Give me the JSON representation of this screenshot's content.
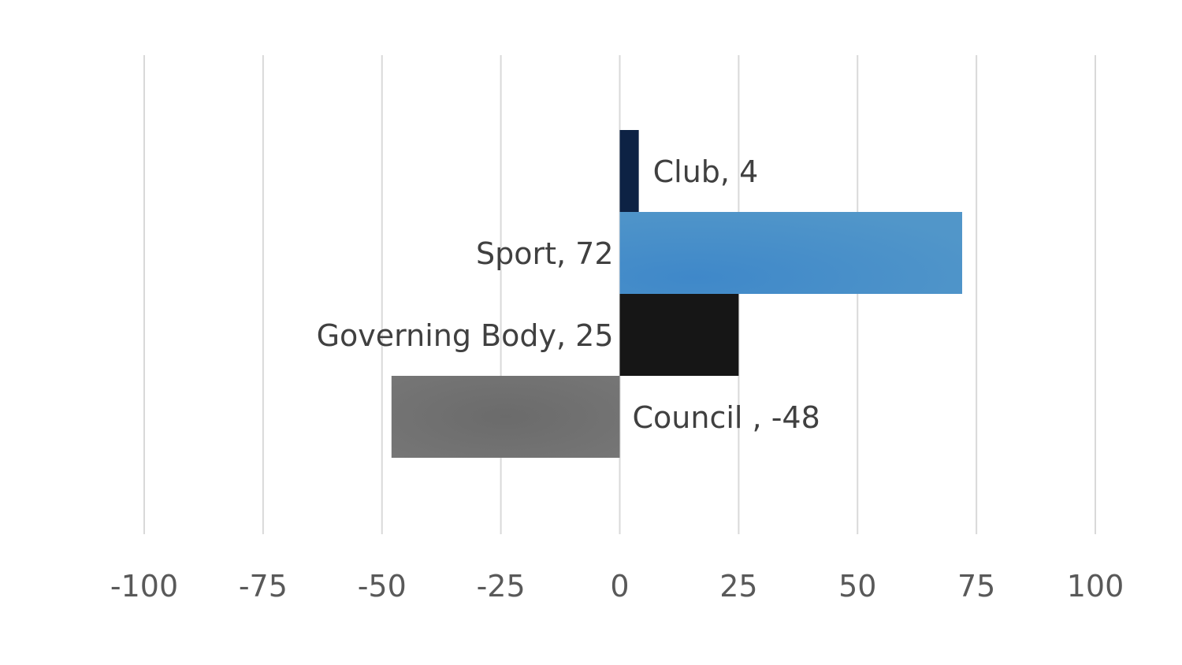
{
  "chart_data": {
    "type": "bar",
    "orientation": "horizontal",
    "title": "",
    "xlabel": "",
    "ylabel": "",
    "xlim": [
      -100,
      100
    ],
    "x_ticks": [
      -100,
      -75,
      -50,
      -25,
      0,
      25,
      50,
      75,
      100
    ],
    "x_tick_labels": [
      "-100",
      "-75",
      "-50",
      "-25",
      "0",
      "25",
      "50",
      "75",
      "100"
    ],
    "grid": "vertical",
    "legend": "none",
    "categories": [
      "Club",
      "Sport",
      "Governing Body",
      "Council "
    ],
    "values": [
      4,
      72,
      25,
      -48
    ],
    "data_labels": [
      "Club, 4",
      "Sport, 72",
      "Governing Body, 25",
      "Council , -48"
    ],
    "colors": [
      "#0d2244",
      "#4a90c8",
      "#161616",
      "#6e6e6e"
    ]
  }
}
